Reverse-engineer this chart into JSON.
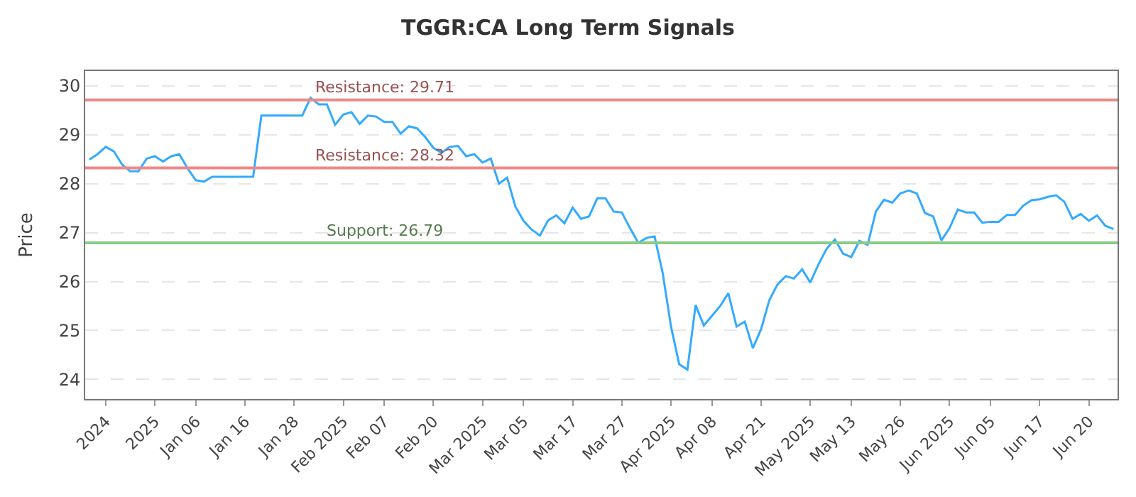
{
  "chart_data": {
    "type": "line",
    "title": "TGGR:CA Long Term Signals",
    "ylabel": "Price",
    "categories": [
      null,
      null,
      "2024",
      null,
      null,
      null,
      null,
      null,
      "2025",
      null,
      null,
      null,
      null,
      "Jan 06",
      null,
      null,
      null,
      null,
      null,
      "Jan 16",
      null,
      null,
      null,
      null,
      null,
      "Jan 28",
      null,
      null,
      null,
      null,
      null,
      "Feb 2025",
      null,
      null,
      null,
      null,
      "Feb 07",
      null,
      null,
      null,
      null,
      null,
      "Feb 20",
      null,
      null,
      null,
      null,
      null,
      "Mar 2025",
      null,
      null,
      null,
      null,
      "Mar 05",
      null,
      null,
      null,
      null,
      null,
      "Mar 17",
      null,
      null,
      null,
      null,
      null,
      "Mar 27",
      null,
      null,
      null,
      null,
      null,
      "Apr 2025",
      null,
      null,
      null,
      null,
      "Apr 08",
      null,
      null,
      null,
      null,
      null,
      "Apr 21",
      null,
      null,
      null,
      null,
      null,
      "May 2025",
      null,
      null,
      null,
      null,
      "May 13",
      null,
      null,
      null,
      null,
      null,
      "May 26",
      null,
      null,
      null,
      null,
      null,
      "Jun 2025",
      null,
      null,
      null,
      null,
      "Jun 05",
      null,
      null,
      null,
      null,
      null,
      "Jun 17",
      null,
      null,
      null,
      null,
      null,
      "Jun 20",
      null,
      null,
      null
    ],
    "series": [
      {
        "color": "#33aaff",
        "values": [
          28.49,
          28.6,
          28.75,
          28.66,
          28.39,
          28.25,
          28.25,
          28.51,
          28.56,
          28.45,
          28.56,
          28.6,
          28.31,
          28.07,
          28.04,
          28.14,
          28.14,
          28.14,
          28.14,
          28.14,
          28.14,
          29.39,
          29.39,
          29.39,
          29.39,
          29.39,
          29.39,
          29.75,
          29.62,
          29.62,
          29.2,
          29.41,
          29.46,
          29.22,
          29.39,
          29.37,
          29.26,
          29.26,
          29.02,
          29.17,
          29.13,
          28.95,
          28.73,
          28.63,
          28.75,
          28.77,
          28.56,
          28.6,
          28.43,
          28.51,
          28.0,
          28.12,
          27.53,
          27.24,
          27.06,
          26.94,
          27.25,
          27.35,
          27.19,
          27.51,
          27.28,
          27.33,
          27.7,
          27.7,
          27.43,
          27.41,
          27.09,
          26.79,
          26.89,
          26.92,
          26.16,
          25.08,
          24.31,
          24.2,
          25.52,
          25.1,
          25.3,
          25.5,
          25.76,
          25.08,
          25.18,
          24.64,
          25.03,
          25.62,
          25.94,
          26.11,
          26.06,
          26.25,
          25.98,
          26.35,
          26.67,
          26.86,
          26.57,
          26.5,
          26.83,
          26.75,
          27.43,
          27.67,
          27.61,
          27.8,
          27.86,
          27.8,
          27.4,
          27.33,
          26.84,
          27.09,
          27.47,
          27.41,
          27.41,
          27.2,
          27.22,
          27.22,
          27.36,
          27.36,
          27.55,
          27.66,
          27.68,
          27.73,
          27.76,
          27.63,
          27.28,
          27.38,
          27.24,
          27.35,
          27.14,
          27.07
        ]
      }
    ],
    "ylim": [
      23.6,
      30.3
    ],
    "yticks": [
      24,
      25,
      26,
      27,
      28,
      29,
      30
    ],
    "grid": "y",
    "marker": "none",
    "line_style": "solid",
    "ref_lines": [
      {
        "axis": "y",
        "value": 29.71,
        "label": "Resistance: 29.71",
        "color": "#ee8888"
      },
      {
        "axis": "y",
        "value": 28.32,
        "label": "Resistance: 28.32",
        "color": "#ee8888"
      },
      {
        "axis": "y",
        "value": 26.79,
        "label": "Support: 26.79",
        "color": "#88cc88"
      }
    ]
  }
}
